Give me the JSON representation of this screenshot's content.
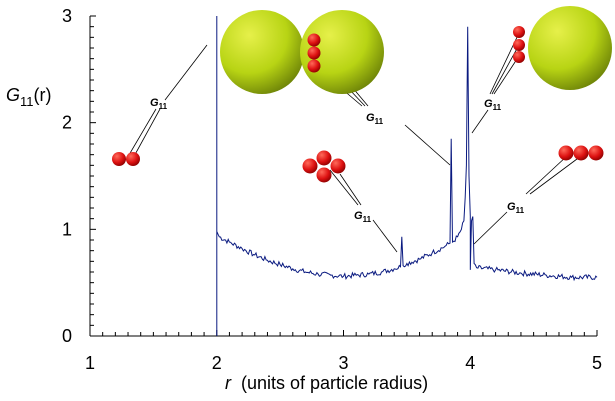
{
  "chart_data": {
    "type": "line",
    "title": "",
    "ylabel_main": "G",
    "ylabel_sub": "11",
    "ylabel_tail": "(r)",
    "xlabel_var": "r",
    "xlabel_rest": "(units of particle radius)",
    "xlim": [
      1,
      5
    ],
    "ylim": [
      0,
      3
    ],
    "x_ticks": [
      "1",
      "2",
      "3",
      "4",
      "5"
    ],
    "y_ticks": [
      "0",
      "1",
      "2",
      "3"
    ],
    "grid": false,
    "line_color": "#0a1a80",
    "series": [
      {
        "x": [
          2.0,
          2.0,
          2.0,
          2.02,
          2.1,
          2.2,
          2.3,
          2.4,
          2.5,
          2.6,
          2.7,
          2.8,
          2.9,
          3.0,
          3.1,
          3.2,
          3.3,
          3.4,
          3.45,
          3.46,
          3.47,
          3.5,
          3.6,
          3.7,
          3.8,
          3.84,
          3.85,
          3.86,
          3.9,
          3.93,
          3.95,
          3.96,
          3.97,
          3.98,
          3.99,
          4.0,
          4.0,
          4.01,
          4.02,
          4.03,
          4.05,
          4.2,
          4.4,
          4.6,
          4.8,
          5.0
        ],
        "y": [
          0,
          3.0,
          0.98,
          0.93,
          0.88,
          0.82,
          0.76,
          0.71,
          0.67,
          0.63,
          0.6,
          0.58,
          0.57,
          0.56,
          0.57,
          0.58,
          0.6,
          0.63,
          0.65,
          0.93,
          0.66,
          0.68,
          0.72,
          0.78,
          0.84,
          0.87,
          1.85,
          0.88,
          0.93,
          1.0,
          1.08,
          1.3,
          1.6,
          2.9,
          1.5,
          1.12,
          0.62,
          1.08,
          1.12,
          0.68,
          0.64,
          0.62,
          0.59,
          0.57,
          0.55,
          0.55
        ]
      }
    ],
    "annotations": {
      "label_main": "G",
      "label_sub": "11"
    },
    "colors": {
      "small_particle": "#dd1111",
      "large_particle": "#b8d414"
    }
  }
}
